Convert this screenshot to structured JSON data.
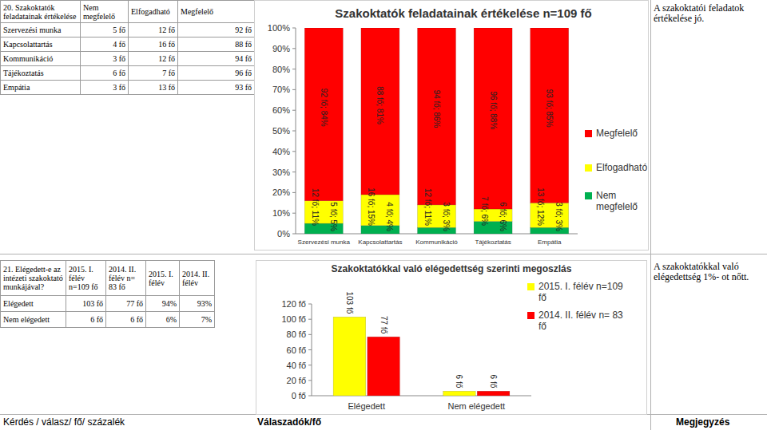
{
  "tables": [
    {
      "header": [
        "20. Szakoktatók feladatainak értékelése",
        "Nem megfelelő",
        "Elfogadható",
        "Megfelelő"
      ],
      "rows": [
        [
          "Szervezési munka",
          "5 fő",
          "12 fő",
          "92 fő"
        ],
        [
          "Kapcsolattartás",
          "4 fő",
          "16 fő",
          "88 fő"
        ],
        [
          "Kommunikáció",
          "3 fő",
          "12 fő",
          "94 fő"
        ],
        [
          "Tájékoztatás",
          "6 fő",
          "7 fő",
          "96 fő"
        ],
        [
          "Empátia",
          "3 fő",
          "13 fő",
          "93 fő"
        ]
      ]
    },
    {
      "header": [
        "21. Elégedett-e az intézeti szakoktató munkájával?",
        "2015. I. félév n=109 fő",
        "2014. II. félév n= 83 fő",
        "2015. I. félév",
        "2014. II. félév"
      ],
      "rows": [
        [
          "Elégedett",
          "103 fő",
          "77 fő",
          "94%",
          "93%"
        ],
        [
          "Nem elégedett",
          "6 fő",
          "6 fő",
          "6%",
          "7%"
        ]
      ]
    }
  ],
  "notes": [
    "A szakoktatói feladatok értékelése jó.",
    "A szakoktatókkal való elégedettség 1%- ot nőtt."
  ],
  "footer": [
    "Kérdés / válasz/ fő/ százalék",
    "Válaszadók/fő",
    "Megjegyzés"
  ],
  "chart_data": [
    {
      "type": "bar",
      "title": "Szakoktatók feladatainak értékelése n=109 fő",
      "stacked": true,
      "data_labels": true,
      "legend": "right",
      "grid": false,
      "categories": [
        "Szervezési munka",
        "Kapcsolattartás",
        "Kommunikáció",
        "Tájékoztatás",
        "Empátia"
      ],
      "series": [
        {
          "name": "Nem megfelelő",
          "color": "#00b050",
          "values": [
            5,
            4,
            3,
            6,
            3
          ],
          "value_labels": [
            "5 fő; 5%",
            "4 fő; 4%",
            "3 fő; 3%",
            "6 fő; 6%",
            "3 fő; 3%"
          ]
        },
        {
          "name": "Elfogadható",
          "color": "#ffff00",
          "values": [
            11,
            15,
            11,
            6,
            12
          ],
          "value_labels": [
            "12 fő; 11%",
            "16 fő; 15%",
            "12 fő; 11%",
            "7 fő; 6%",
            "13 fő; 12%"
          ]
        },
        {
          "name": "Megfelelő",
          "color": "#ff0000",
          "values": [
            84,
            81,
            86,
            88,
            85
          ],
          "value_labels": [
            "92 fő; 84%",
            "88 fő; 81%",
            "94 fő; 86%",
            "96 fő; 88%",
            "93 fő; 85%"
          ]
        }
      ],
      "ylim": [
        0,
        100
      ],
      "yticks": [
        {
          "value": 0,
          "label": "0%"
        },
        {
          "value": 10,
          "label": "10%"
        },
        {
          "value": 20,
          "label": "20%"
        },
        {
          "value": 30,
          "label": "30%"
        },
        {
          "value": 40,
          "label": "40%"
        },
        {
          "value": 50,
          "label": "50%"
        },
        {
          "value": 60,
          "label": "60%"
        },
        {
          "value": 70,
          "label": "70%"
        },
        {
          "value": 80,
          "label": "80%"
        },
        {
          "value": 90,
          "label": "90%"
        },
        {
          "value": 100,
          "label": "100%"
        }
      ]
    },
    {
      "type": "bar",
      "title": "Szakoktatókkal való elégedettség szerinti megoszlás",
      "stacked": false,
      "data_labels": true,
      "legend": "right",
      "grid": false,
      "categories": [
        "Elégedett",
        "Nem elégedett"
      ],
      "series": [
        {
          "name": "2015. I. félév n=109 fő",
          "color": "#ffff00",
          "values": [
            103,
            6
          ],
          "value_labels": [
            "103 fő",
            "6 fő"
          ]
        },
        {
          "name": "2014. II. félév n= 83 fő",
          "color": "#ff0000",
          "values": [
            77,
            6
          ],
          "value_labels": [
            "77 fő",
            "6 fő"
          ]
        }
      ],
      "ylim": [
        0,
        120
      ],
      "yticks": [
        {
          "value": 0,
          "label": "0 fő"
        },
        {
          "value": 20,
          "label": "20 fő"
        },
        {
          "value": 40,
          "label": "40 fő"
        },
        {
          "value": 60,
          "label": "60 fő"
        },
        {
          "value": 80,
          "label": "80 fő"
        },
        {
          "value": 100,
          "label": "100 fő"
        },
        {
          "value": 120,
          "label": "120 fő"
        }
      ]
    }
  ]
}
